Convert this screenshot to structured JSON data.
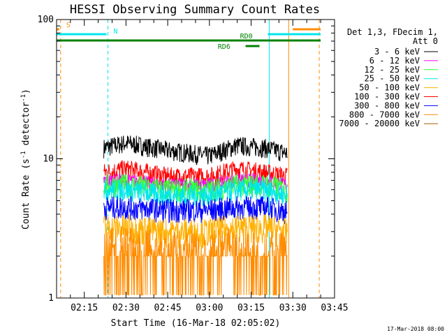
{
  "chart_data": {
    "type": "line",
    "title": "HESSI Observing Summary Count Rates",
    "xlabel": "Start Time (16-Mar-18 02:05:02)",
    "ylabel_main": "Count Rate (s",
    "ylabel_sup1": "-1",
    "ylabel_mid": " detector",
    "ylabel_sup2": "-1",
    "ylabel_end": ")",
    "yscale": "log",
    "ylim": [
      1,
      100
    ],
    "xlim": [
      "02:05:02",
      "03:45"
    ],
    "x_ticks": [
      "02:15",
      "02:30",
      "02:45",
      "03:00",
      "03:15",
      "03:30",
      "03:45"
    ],
    "y_ticks": [
      "1",
      "10",
      "100"
    ],
    "footer": "17-Mar-2018 08:00",
    "legend": {
      "header": [
        "Det 1,3, FDecim 1,",
        "Att 0"
      ],
      "entries": [
        {
          "label": "3 - 6 keV",
          "color": "#000000"
        },
        {
          "label": "6 - 12 keV",
          "color": "#ff00ff"
        },
        {
          "label": "12 - 25 keV",
          "color": "#33ff33"
        },
        {
          "label": "25 - 50 keV",
          "color": "#00e5ee"
        },
        {
          "label": "50 - 100 keV",
          "color": "#ffb000"
        },
        {
          "label": "100 - 300 keV",
          "color": "#ff0000"
        },
        {
          "label": "300 - 800 keV",
          "color": "#0000ff"
        },
        {
          "label": "800 - 7000 keV",
          "color": "#ff8c00"
        },
        {
          "label": "7000 - 20000 keV",
          "color": "#a06000"
        }
      ]
    },
    "data_interval": {
      "start": "02:22",
      "end": "03:28"
    },
    "series": [
      {
        "name": "3 - 6 keV",
        "color": "#000000",
        "x": [
          "02:22",
          "02:30",
          "02:45",
          "03:00",
          "03:10",
          "03:20",
          "03:28"
        ],
        "y": [
          12,
          13,
          11.5,
          10.5,
          12.5,
          12,
          11
        ]
      },
      {
        "name": "100 - 300 keV",
        "color": "#ff0000",
        "x": [
          "02:22",
          "02:30",
          "02:45",
          "03:00",
          "03:10",
          "03:20",
          "03:28"
        ],
        "y": [
          8,
          8.5,
          7.5,
          7.5,
          8.5,
          8,
          7.5
        ]
      },
      {
        "name": "6 - 12 keV",
        "color": "#ff00ff",
        "x": [
          "02:22",
          "02:30",
          "02:45",
          "03:00",
          "03:10",
          "03:20",
          "03:28"
        ],
        "y": [
          7,
          7,
          6.5,
          6.5,
          7,
          7,
          6.5
        ]
      },
      {
        "name": "12 - 25 keV",
        "color": "#33ff33",
        "x": [
          "02:22",
          "02:30",
          "02:45",
          "03:00",
          "03:10",
          "03:20",
          "03:28"
        ],
        "y": [
          6.5,
          6.5,
          6,
          6,
          6.5,
          6.5,
          6
        ]
      },
      {
        "name": "25 - 50 keV",
        "color": "#00e5ee",
        "x": [
          "02:22",
          "02:30",
          "02:45",
          "03:00",
          "03:10",
          "03:20",
          "03:28"
        ],
        "y": [
          6,
          6,
          5.5,
          5.5,
          6,
          6,
          5.5
        ]
      },
      {
        "name": "300 - 800 keV",
        "color": "#0000ff",
        "x": [
          "02:22",
          "02:30",
          "02:45",
          "03:00",
          "03:10",
          "03:20",
          "03:28"
        ],
        "y": [
          4.5,
          4.5,
          4.3,
          4.3,
          4.5,
          4.5,
          4.2
        ]
      },
      {
        "name": "50 - 100 keV",
        "color": "#ffb000",
        "x": [
          "02:22",
          "02:30",
          "02:45",
          "03:00",
          "03:10",
          "03:20",
          "03:28"
        ],
        "y": [
          3.2,
          3.2,
          3,
          3,
          3.2,
          3.2,
          3
        ]
      },
      {
        "name": "800 - 7000 keV",
        "color": "#ff8c00",
        "x": [
          "02:22",
          "02:30",
          "02:45",
          "03:00",
          "03:10",
          "03:20",
          "03:28"
        ],
        "y": [
          2.5,
          2.4,
          2.3,
          2.3,
          2.4,
          2.4,
          2.3
        ]
      }
    ],
    "flags": [
      {
        "label": "S",
        "color": "#ff8c00",
        "segments": [
          [
            "02:05:02",
            "02:06"
          ],
          [
            "03:30",
            "03:40"
          ]
        ]
      },
      {
        "label": "N",
        "color": "#00e5ee",
        "segments": [
          [
            "02:05:02",
            "02:23"
          ],
          [
            "03:21",
            "03:40"
          ]
        ]
      },
      {
        "label": "RD0",
        "color": "#008000",
        "segments": [
          [
            "02:05:02",
            "03:40"
          ]
        ]
      },
      {
        "label": "RD6",
        "color": "#008000",
        "segments": [
          [
            "03:13",
            "03:18"
          ]
        ]
      }
    ],
    "vlines": [
      {
        "time": "02:06:30",
        "color": "#ff8c00",
        "style": "dashed"
      },
      {
        "time": "02:23:30",
        "color": "#00e5ee",
        "style": "dashed"
      },
      {
        "time": "03:21:30",
        "color": "#00e5ee",
        "style": "solid"
      },
      {
        "time": "03:28:30",
        "color": "#ff8c00",
        "style": "solid"
      },
      {
        "time": "03:39:30",
        "color": "#ff8c00",
        "style": "dashed"
      }
    ]
  }
}
